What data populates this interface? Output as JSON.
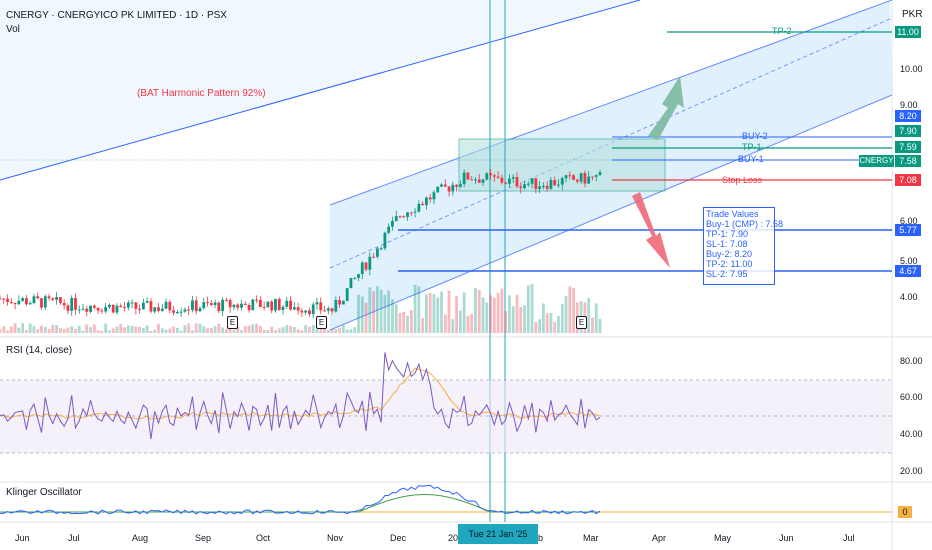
{
  "header": {
    "title": "CNERGY · CNERGYICO PK LIMITED · 1D · PSX",
    "vol_label": "Vol",
    "currency": "PKR"
  },
  "annotations": {
    "pattern_label": "(BAT Harmonic Pattern 92%)",
    "symbol_tag": "CNERGY"
  },
  "trade_box": {
    "title": "Trade Values",
    "lines": [
      "Buy-1 (CMP) : 7.58",
      "TP-1: 7.90",
      "SL-1: 7.08",
      "Buy-2: 8.20",
      "TP-2: 11.00",
      "SL-2: 7.95"
    ]
  },
  "levels": [
    {
      "name": "TP-2",
      "label": "TP-2",
      "value": "11.00",
      "color": "#089981"
    },
    {
      "name": "buy-2",
      "label": "BUY-2",
      "value": "8.20",
      "color": "#2962ff"
    },
    {
      "name": "tp-1",
      "label": "TP-1",
      "value": "7.90",
      "color": "#089981"
    },
    {
      "name": "buy-1",
      "label": "BUY-1",
      "value": "7.58",
      "color": "#2962ff"
    },
    {
      "name": "stop-loss",
      "label": "Stop Loss",
      "value": "7.08",
      "color": "#f23645"
    },
    {
      "name": "support-1",
      "label": "",
      "value": "5.77",
      "color": "#2962ff"
    },
    {
      "name": "support-2",
      "label": "",
      "value": "4.67",
      "color": "#2962ff"
    }
  ],
  "price_axis_ticks": [
    "11.00",
    "10.00",
    "9.00",
    "8.20",
    "7.90",
    "7.59",
    "7.58",
    "7.08",
    "6.00",
    "5.77",
    "5.00",
    "4.67",
    "4.00"
  ],
  "rsi": {
    "label": "RSI (14, close)",
    "ticks": [
      "80.00",
      "60.00",
      "40.00",
      "20.00"
    ]
  },
  "klinger": {
    "label": "Klinger Oscillator",
    "value": "0"
  },
  "time_axis": {
    "months": [
      "Jun",
      "Jul",
      "Aug",
      "Sep",
      "Oct",
      "Nov",
      "Dec",
      "20",
      "Tu",
      "b",
      "Mar",
      "Apr",
      "May",
      "Jun",
      "Jul"
    ],
    "crosshair_label": "Tue 21 Jan '25"
  },
  "earnings_marker": "E",
  "chart_data": {
    "type": "line",
    "title": "CNERGY · CNERGYICO PK LIMITED · 1D · PSX",
    "x": [
      "Jun",
      "Jul",
      "Aug",
      "Sep",
      "Oct",
      "Nov",
      "Dec",
      "Jan",
      "Feb",
      "Mar"
    ],
    "series": [
      {
        "name": "CNERGY",
        "values": [
          4.4,
          4.25,
          4.15,
          4.2,
          4.25,
          4.1,
          6.6,
          7.6,
          7.4,
          7.58
        ]
      }
    ],
    "ylim": [
      3.6,
      12.0
    ],
    "ylabel": "PKR",
    "colors": {
      "up": "#089981",
      "down": "#f23645",
      "accent": "#2962ff"
    }
  }
}
